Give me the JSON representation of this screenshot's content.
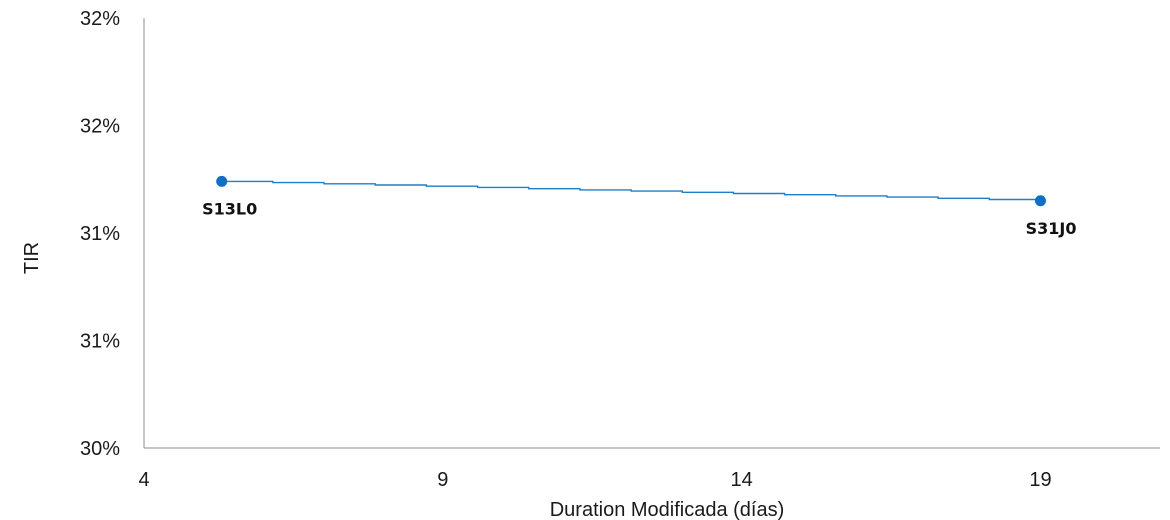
{
  "chart_data": {
    "type": "scatter",
    "title": "",
    "xlabel": "Duration  Modificada (días)",
    "ylabel": "TIR",
    "xlim": [
      4,
      21
    ],
    "ylim": [
      30.0,
      32.0
    ],
    "x_ticks": [
      4,
      9,
      14,
      19
    ],
    "x_tick_labels": [
      "4",
      "9",
      "14",
      "19"
    ],
    "y_ticks": [
      30.0,
      30.5,
      31.0,
      31.5,
      32.0
    ],
    "y_tick_labels": [
      "30%",
      "31%",
      "31%",
      "32%",
      "32%"
    ],
    "grid": false,
    "legend": "none",
    "series": [
      {
        "points": [
          {
            "x": 5.3,
            "y": 31.24,
            "label": "S13L0"
          },
          {
            "x": 19.0,
            "y": 31.15,
            "label": "S31J0"
          }
        ],
        "trendline": {
          "type": "linear",
          "x": [
            5.3,
            19.0
          ],
          "y": [
            31.24,
            31.15
          ]
        }
      }
    ],
    "colors": {
      "marker": "#0f6fc6",
      "trendline": "#1f7fc8",
      "axis": "#8c8c8c"
    }
  }
}
